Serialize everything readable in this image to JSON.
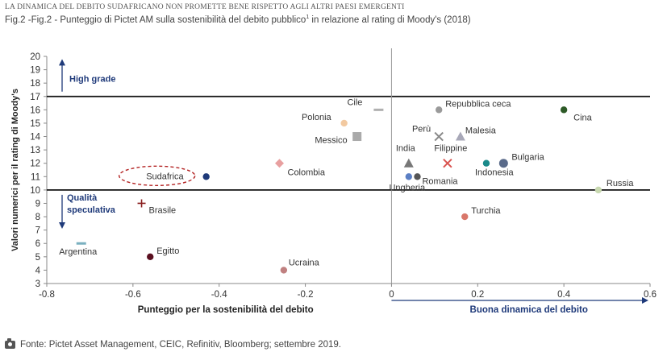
{
  "header": {
    "kicker": "LA DINAMICA DEL DEBITO SUDAFRICANO NON PROMETTE BENE RISPETTO AGLI ALTRI PAESI EMERGENTI",
    "caption_main": "Fig.2 -Fig.2 - Punteggio di Pictet AM sulla sostenibilità del debito pubblico",
    "caption_sup": "1",
    "caption_tail": " in relazione al rating di Moody's (2018)"
  },
  "footer": {
    "icon": "camera-icon",
    "source": "Fonte: Pictet Asset Management, CEIC, Refinitiv, Bloomberg; settembre 2019."
  },
  "chart_data": {
    "type": "scatter",
    "xlabel": "Punteggio per la sostenibilità del debito",
    "ylabel": "Valori numerici per il rating di Moody's",
    "xlim": [
      -0.8,
      0.6
    ],
    "ylim": [
      3,
      20
    ],
    "xticks": [
      "-0.8",
      "-0.6",
      "-0.4",
      "-0.2",
      "0",
      "0.2",
      "0.4",
      "0.6"
    ],
    "yticks": [
      "3",
      "4",
      "5",
      "6",
      "7",
      "8",
      "9",
      "10",
      "11",
      "12",
      "13",
      "14",
      "15",
      "16",
      "17",
      "18",
      "19",
      "20"
    ],
    "grid": false,
    "reference_lines": [
      {
        "axis": "y",
        "value": 17
      },
      {
        "axis": "y",
        "value": 10
      },
      {
        "axis": "x",
        "value": 0
      }
    ],
    "annotations": {
      "high_grade": "High grade",
      "speculative_line1": "Qualità",
      "speculative_line2": "speculativa",
      "good_dynamics": "Buona dinamica del debito"
    },
    "highlight": "Sudafrica",
    "points": [
      {
        "label": "Cile",
        "x": -0.03,
        "y": 16,
        "marker": "dash",
        "color": "#b0b0b0"
      },
      {
        "label": "Repubblica ceca",
        "x": 0.11,
        "y": 16,
        "marker": "circle",
        "color": "#9a9a9a"
      },
      {
        "label": "Cina",
        "x": 0.4,
        "y": 16,
        "marker": "circle",
        "color": "#2d5a27"
      },
      {
        "label": "Polonia",
        "x": -0.11,
        "y": 15,
        "marker": "circle",
        "color": "#f2c9a0"
      },
      {
        "label": "Messico",
        "x": -0.08,
        "y": 14,
        "marker": "square",
        "color": "#aaaaaa"
      },
      {
        "label": "Perù",
        "x": 0.11,
        "y": 14,
        "marker": "x",
        "color": "#888888"
      },
      {
        "label": "Malesia",
        "x": 0.16,
        "y": 14,
        "marker": "triangle",
        "color": "#a8a8b8"
      },
      {
        "label": "India",
        "x": 0.04,
        "y": 12,
        "marker": "triangle",
        "color": "#777777"
      },
      {
        "label": "Filippine",
        "x": 0.13,
        "y": 12,
        "marker": "x",
        "color": "#d9534f"
      },
      {
        "label": "Indonesia",
        "x": 0.22,
        "y": 12,
        "marker": "circle",
        "color": "#1a8a8a"
      },
      {
        "label": "Bulgaria",
        "x": 0.26,
        "y": 12,
        "marker": "circle",
        "color": "#5a6b8a"
      },
      {
        "label": "Colombia",
        "x": -0.26,
        "y": 12,
        "marker": "diamond",
        "color": "#e8a0a0"
      },
      {
        "label": "Sudafrica",
        "x": -0.43,
        "y": 11,
        "marker": "circle",
        "color": "#1f3a7a"
      },
      {
        "label": "Ungheria",
        "x": 0.04,
        "y": 11,
        "marker": "circle",
        "color": "#5b7fc4"
      },
      {
        "label": "Romania",
        "x": 0.06,
        "y": 11,
        "marker": "circle",
        "color": "#555555"
      },
      {
        "label": "Russia",
        "x": 0.48,
        "y": 10,
        "marker": "circle",
        "color": "#c8d8b0"
      },
      {
        "label": "Brasile",
        "x": -0.58,
        "y": 9,
        "marker": "plus",
        "color": "#8a2020"
      },
      {
        "label": "Turchia",
        "x": 0.17,
        "y": 8,
        "marker": "circle",
        "color": "#d9776a"
      },
      {
        "label": "Argentina",
        "x": -0.72,
        "y": 6,
        "marker": "dash",
        "color": "#7ab0c0"
      },
      {
        "label": "Egitto",
        "x": -0.56,
        "y": 5,
        "marker": "circle",
        "color": "#5a1020"
      },
      {
        "label": "Ucraina",
        "x": -0.25,
        "y": 4,
        "marker": "circle",
        "color": "#c08080"
      }
    ]
  }
}
